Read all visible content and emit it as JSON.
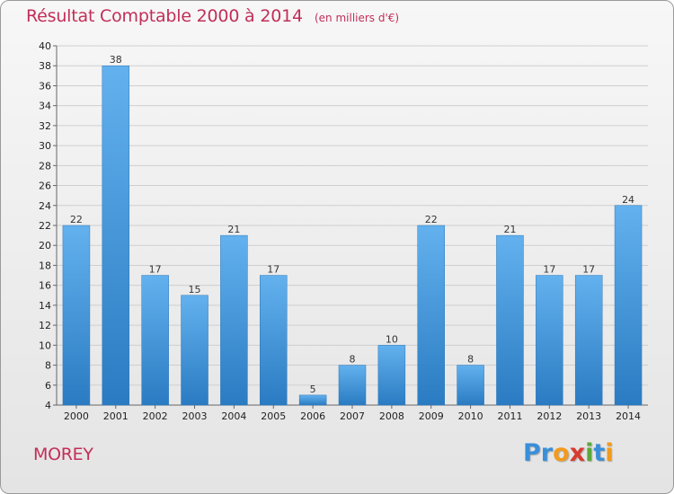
{
  "chart_data": {
    "type": "bar",
    "title": "Résultat Comptable 2000 à 2014",
    "unit_note": "(en milliers d'€)",
    "categories": [
      "2000",
      "2001",
      "2002",
      "2003",
      "2004",
      "2005",
      "2006",
      "2007",
      "2008",
      "2009",
      "2010",
      "2011",
      "2012",
      "2013",
      "2014"
    ],
    "values": [
      22,
      38,
      17,
      15,
      21,
      17,
      5,
      8,
      10,
      22,
      8,
      21,
      17,
      17,
      24
    ],
    "ylim": [
      4,
      40
    ],
    "yticks": [
      4,
      6,
      8,
      10,
      12,
      14,
      16,
      18,
      20,
      22,
      24,
      26,
      28,
      30,
      32,
      34,
      36,
      38,
      40
    ],
    "xlabel": "",
    "ylabel": "",
    "grid": true,
    "bar_color": "#3b8fd6"
  },
  "footer": {
    "commune": "MOREY",
    "brand_letters": [
      {
        "ch": "P",
        "color": "#3a8fd9"
      },
      {
        "ch": "r",
        "color": "#3a8fd9"
      },
      {
        "ch": "o",
        "color": "#f29a1d"
      },
      {
        "ch": "x",
        "color": "#d63c2f"
      },
      {
        "ch": "i",
        "color": "#5aa83b"
      },
      {
        "ch": "t",
        "color": "#3a8fd9"
      },
      {
        "ch": "i",
        "color": "#f29a1d"
      }
    ]
  }
}
